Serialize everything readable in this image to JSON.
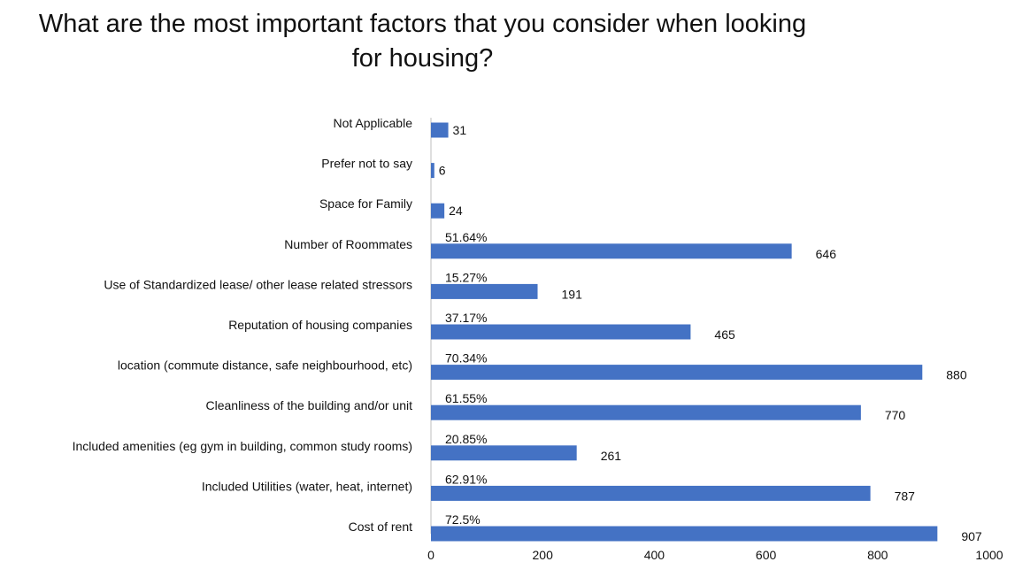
{
  "chart_data": {
    "type": "bar",
    "orientation": "horizontal",
    "title_line1": "What are the most important factors that you consider when looking",
    "title_line2": "for housing?",
    "categories": [
      "Not Applicable",
      "Prefer not to say",
      "Space for Family",
      "Number of Roommates",
      "Use of Standardized lease/ other lease related stressors",
      "Reputation of housing companies",
      "location (commute distance, safe neighbourhood, etc)",
      "Cleanliness of the building and/or unit",
      "Included amenities (eg gym in building,  common study rooms)",
      "Included Utilities (water, heat, internet)",
      "Cost of rent"
    ],
    "values": [
      31,
      6,
      24,
      646,
      191,
      465,
      880,
      770,
      261,
      787,
      907
    ],
    "percent_labels": [
      "",
      "",
      "",
      "51.64%",
      "15.27%",
      "37.17%",
      "70.34%",
      "61.55%",
      "20.85%",
      "62.91%",
      "72.5%"
    ],
    "xlim": [
      0,
      1000
    ],
    "xticks": [
      0,
      200,
      400,
      600,
      800,
      1000
    ],
    "bar_color": "#4472c4",
    "grid": false,
    "legend": "none"
  }
}
